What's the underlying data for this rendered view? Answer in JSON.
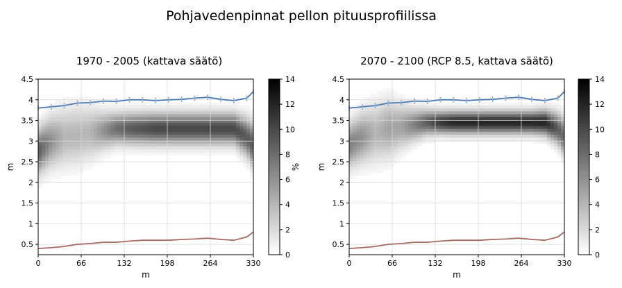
{
  "figure": {
    "title": "Pohjavedenpinnat pellon pituusprofiilissa"
  },
  "chart_data": [
    {
      "type": "heatmap",
      "title": "1970 - 2005 (kattava säätö)",
      "xlabel": "m",
      "ylabel": "m",
      "xlim": [
        0,
        330
      ],
      "ylim": [
        0.25,
        4.5
      ],
      "xticks": [
        0,
        66,
        132,
        198,
        264,
        330
      ],
      "yticks": [
        0.5,
        1,
        1.5,
        2,
        2.5,
        3,
        3.5,
        4,
        4.5
      ],
      "grid": true,
      "colorbar": {
        "label": "%",
        "range": [
          0,
          14
        ],
        "ticks": [
          0,
          2,
          4,
          6,
          8,
          10,
          12,
          14
        ],
        "colormap": "Greys"
      },
      "density": {
        "x": [
          0,
          20,
          40,
          60,
          80,
          100,
          120,
          140,
          160,
          180,
          200,
          220,
          240,
          260,
          280,
          300,
          320,
          330
        ],
        "center": [
          2.75,
          3.0,
          3.1,
          3.15,
          3.2,
          3.25,
          3.3,
          3.3,
          3.3,
          3.3,
          3.3,
          3.3,
          3.3,
          3.3,
          3.3,
          3.3,
          3.1,
          2.9
        ],
        "spread": [
          0.35,
          0.4,
          0.45,
          0.45,
          0.4,
          0.3,
          0.25,
          0.25,
          0.25,
          0.25,
          0.25,
          0.25,
          0.25,
          0.25,
          0.25,
          0.25,
          0.3,
          0.35
        ],
        "peak": [
          9,
          6,
          4,
          4,
          4,
          6,
          8,
          9,
          9.5,
          10,
          10,
          10,
          10,
          10,
          10,
          10,
          9,
          9
        ]
      },
      "series": [
        {
          "role": "soil-surface",
          "color": "#4a78b0",
          "marker_color": "#87b4dc",
          "x": [
            0,
            20,
            40,
            60,
            80,
            100,
            120,
            140,
            160,
            180,
            200,
            220,
            240,
            260,
            280,
            300,
            320,
            330
          ],
          "values": [
            3.8,
            3.83,
            3.86,
            3.92,
            3.93,
            3.97,
            3.96,
            4.0,
            4.0,
            3.98,
            4.0,
            4.01,
            4.04,
            4.06,
            4.01,
            3.98,
            4.04,
            4.2
          ]
        },
        {
          "role": "drain-depth",
          "color": "#a6685e",
          "x": [
            0,
            20,
            40,
            60,
            80,
            100,
            120,
            140,
            160,
            180,
            200,
            220,
            240,
            260,
            280,
            300,
            320,
            330
          ],
          "values": [
            0.4,
            0.42,
            0.45,
            0.5,
            0.52,
            0.55,
            0.55,
            0.58,
            0.6,
            0.6,
            0.6,
            0.62,
            0.63,
            0.65,
            0.62,
            0.6,
            0.68,
            0.8
          ]
        }
      ]
    },
    {
      "type": "heatmap",
      "title": "2070 - 2100 (RCP 8.5, kattava säätö)",
      "xlabel": "m",
      "ylabel": "m",
      "xlim": [
        0,
        330
      ],
      "ylim": [
        0.25,
        4.5
      ],
      "xticks": [
        0,
        66,
        132,
        198,
        264,
        330
      ],
      "yticks": [
        0.5,
        1,
        1.5,
        2,
        2.5,
        3,
        3.5,
        4,
        4.5
      ],
      "grid": true,
      "colorbar": {
        "label": "",
        "range": [
          0,
          14
        ],
        "ticks": [
          0,
          2,
          4,
          6,
          8,
          10,
          12,
          14
        ],
        "colormap": "Greys"
      },
      "density": {
        "x": [
          0,
          20,
          40,
          60,
          80,
          100,
          120,
          140,
          160,
          180,
          200,
          220,
          240,
          260,
          280,
          300,
          320,
          330
        ],
        "center": [
          2.9,
          3.1,
          3.2,
          3.3,
          3.35,
          3.4,
          3.45,
          3.45,
          3.45,
          3.45,
          3.45,
          3.45,
          3.45,
          3.45,
          3.45,
          3.45,
          3.3,
          3.1
        ],
        "spread": [
          0.35,
          0.4,
          0.45,
          0.45,
          0.35,
          0.25,
          0.2,
          0.18,
          0.18,
          0.18,
          0.18,
          0.18,
          0.18,
          0.18,
          0.18,
          0.2,
          0.25,
          0.3
        ],
        "peak": [
          7,
          6,
          4,
          5,
          5,
          7,
          9,
          11,
          12,
          12,
          12,
          12,
          12,
          12,
          12,
          12,
          9,
          8
        ]
      },
      "series": [
        {
          "role": "soil-surface",
          "color": "#4a78b0",
          "marker_color": "#87b4dc",
          "x": [
            0,
            20,
            40,
            60,
            80,
            100,
            120,
            140,
            160,
            180,
            200,
            220,
            240,
            260,
            280,
            300,
            320,
            330
          ],
          "values": [
            3.8,
            3.83,
            3.86,
            3.92,
            3.93,
            3.97,
            3.96,
            4.0,
            4.0,
            3.98,
            4.0,
            4.01,
            4.04,
            4.06,
            4.01,
            3.98,
            4.04,
            4.2
          ]
        },
        {
          "role": "drain-depth",
          "color": "#a6685e",
          "x": [
            0,
            20,
            40,
            60,
            80,
            100,
            120,
            140,
            160,
            180,
            200,
            220,
            240,
            260,
            280,
            300,
            320,
            330
          ],
          "values": [
            0.4,
            0.42,
            0.45,
            0.5,
            0.52,
            0.55,
            0.55,
            0.58,
            0.6,
            0.6,
            0.6,
            0.62,
            0.63,
            0.65,
            0.62,
            0.6,
            0.68,
            0.8
          ]
        }
      ]
    }
  ]
}
